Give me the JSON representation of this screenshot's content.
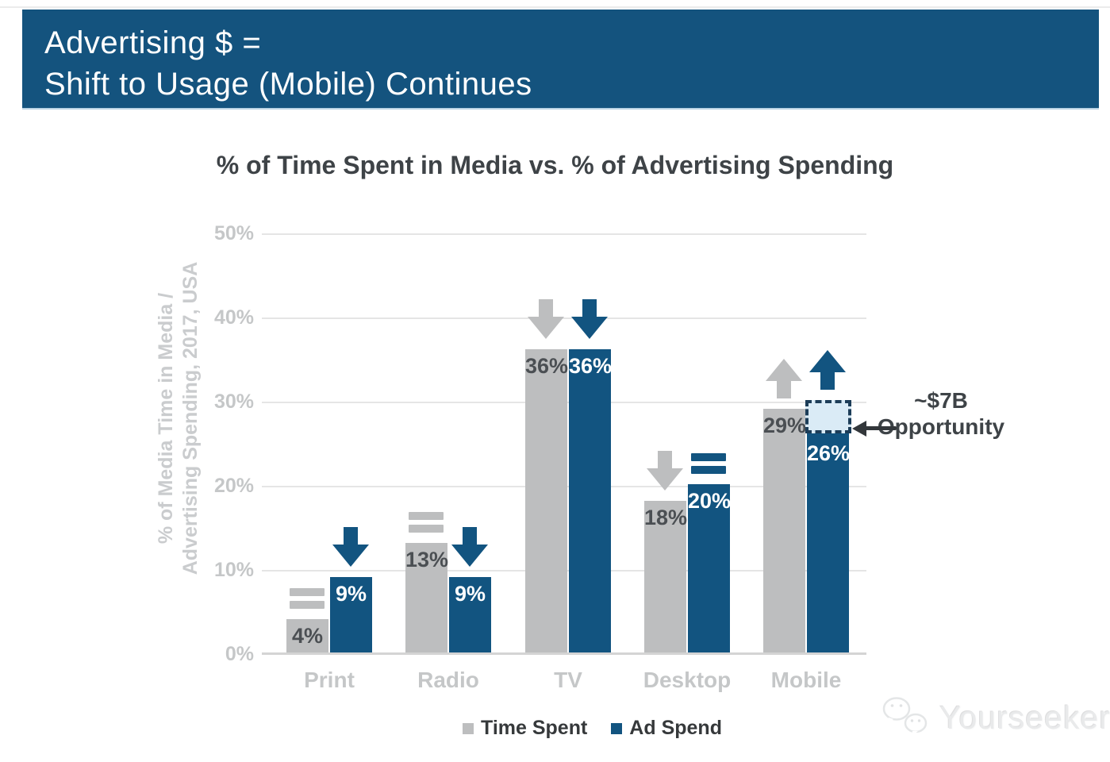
{
  "header": {
    "line1": "Advertising $ =",
    "line2": "Shift to Usage (Mobile) Continues",
    "background": "#14537E"
  },
  "chart_data": {
    "type": "bar",
    "title": "% of Time Spent in Media vs. % of Advertising Spending",
    "ylabel_line1": "% of Media Time in Media /",
    "ylabel_line2": "Advertising Spending, 2017, USA",
    "categories": [
      "Print",
      "Radio",
      "TV",
      "Desktop",
      "Mobile"
    ],
    "series": [
      {
        "name": "Time Spent",
        "color": "#BDBEBF",
        "values": [
          4,
          13,
          36,
          18,
          29
        ],
        "value_labels": [
          "4%",
          "13%",
          "36%",
          "18%",
          "29%"
        ],
        "trends": [
          "equal",
          "equal",
          "down",
          "down",
          "up"
        ]
      },
      {
        "name": "Ad Spend",
        "color": "#125480",
        "values": [
          9,
          9,
          36,
          20,
          26
        ],
        "value_labels": [
          "9%",
          "9%",
          "36%",
          "20%",
          "26%"
        ],
        "trends": [
          "down",
          "down",
          "down",
          "equal",
          "up"
        ]
      }
    ],
    "ylim": [
      0,
      50
    ],
    "yticks": [
      "0%",
      "10%",
      "20%",
      "30%",
      "40%",
      "50%"
    ],
    "grid": true,
    "legend_position": "bottom",
    "annotation": {
      "line1": "~$7B",
      "line2": "Opportunity",
      "points_to": "gap on top of Mobile Ad Spend bar",
      "gap_from_percent": 26,
      "gap_to_percent": 30
    }
  },
  "legend": [
    {
      "label": "Time Spent",
      "color": "#BDBEBF"
    },
    {
      "label": "Ad Spend",
      "color": "#125480"
    }
  ],
  "watermark": {
    "text": "Yourseeker"
  }
}
